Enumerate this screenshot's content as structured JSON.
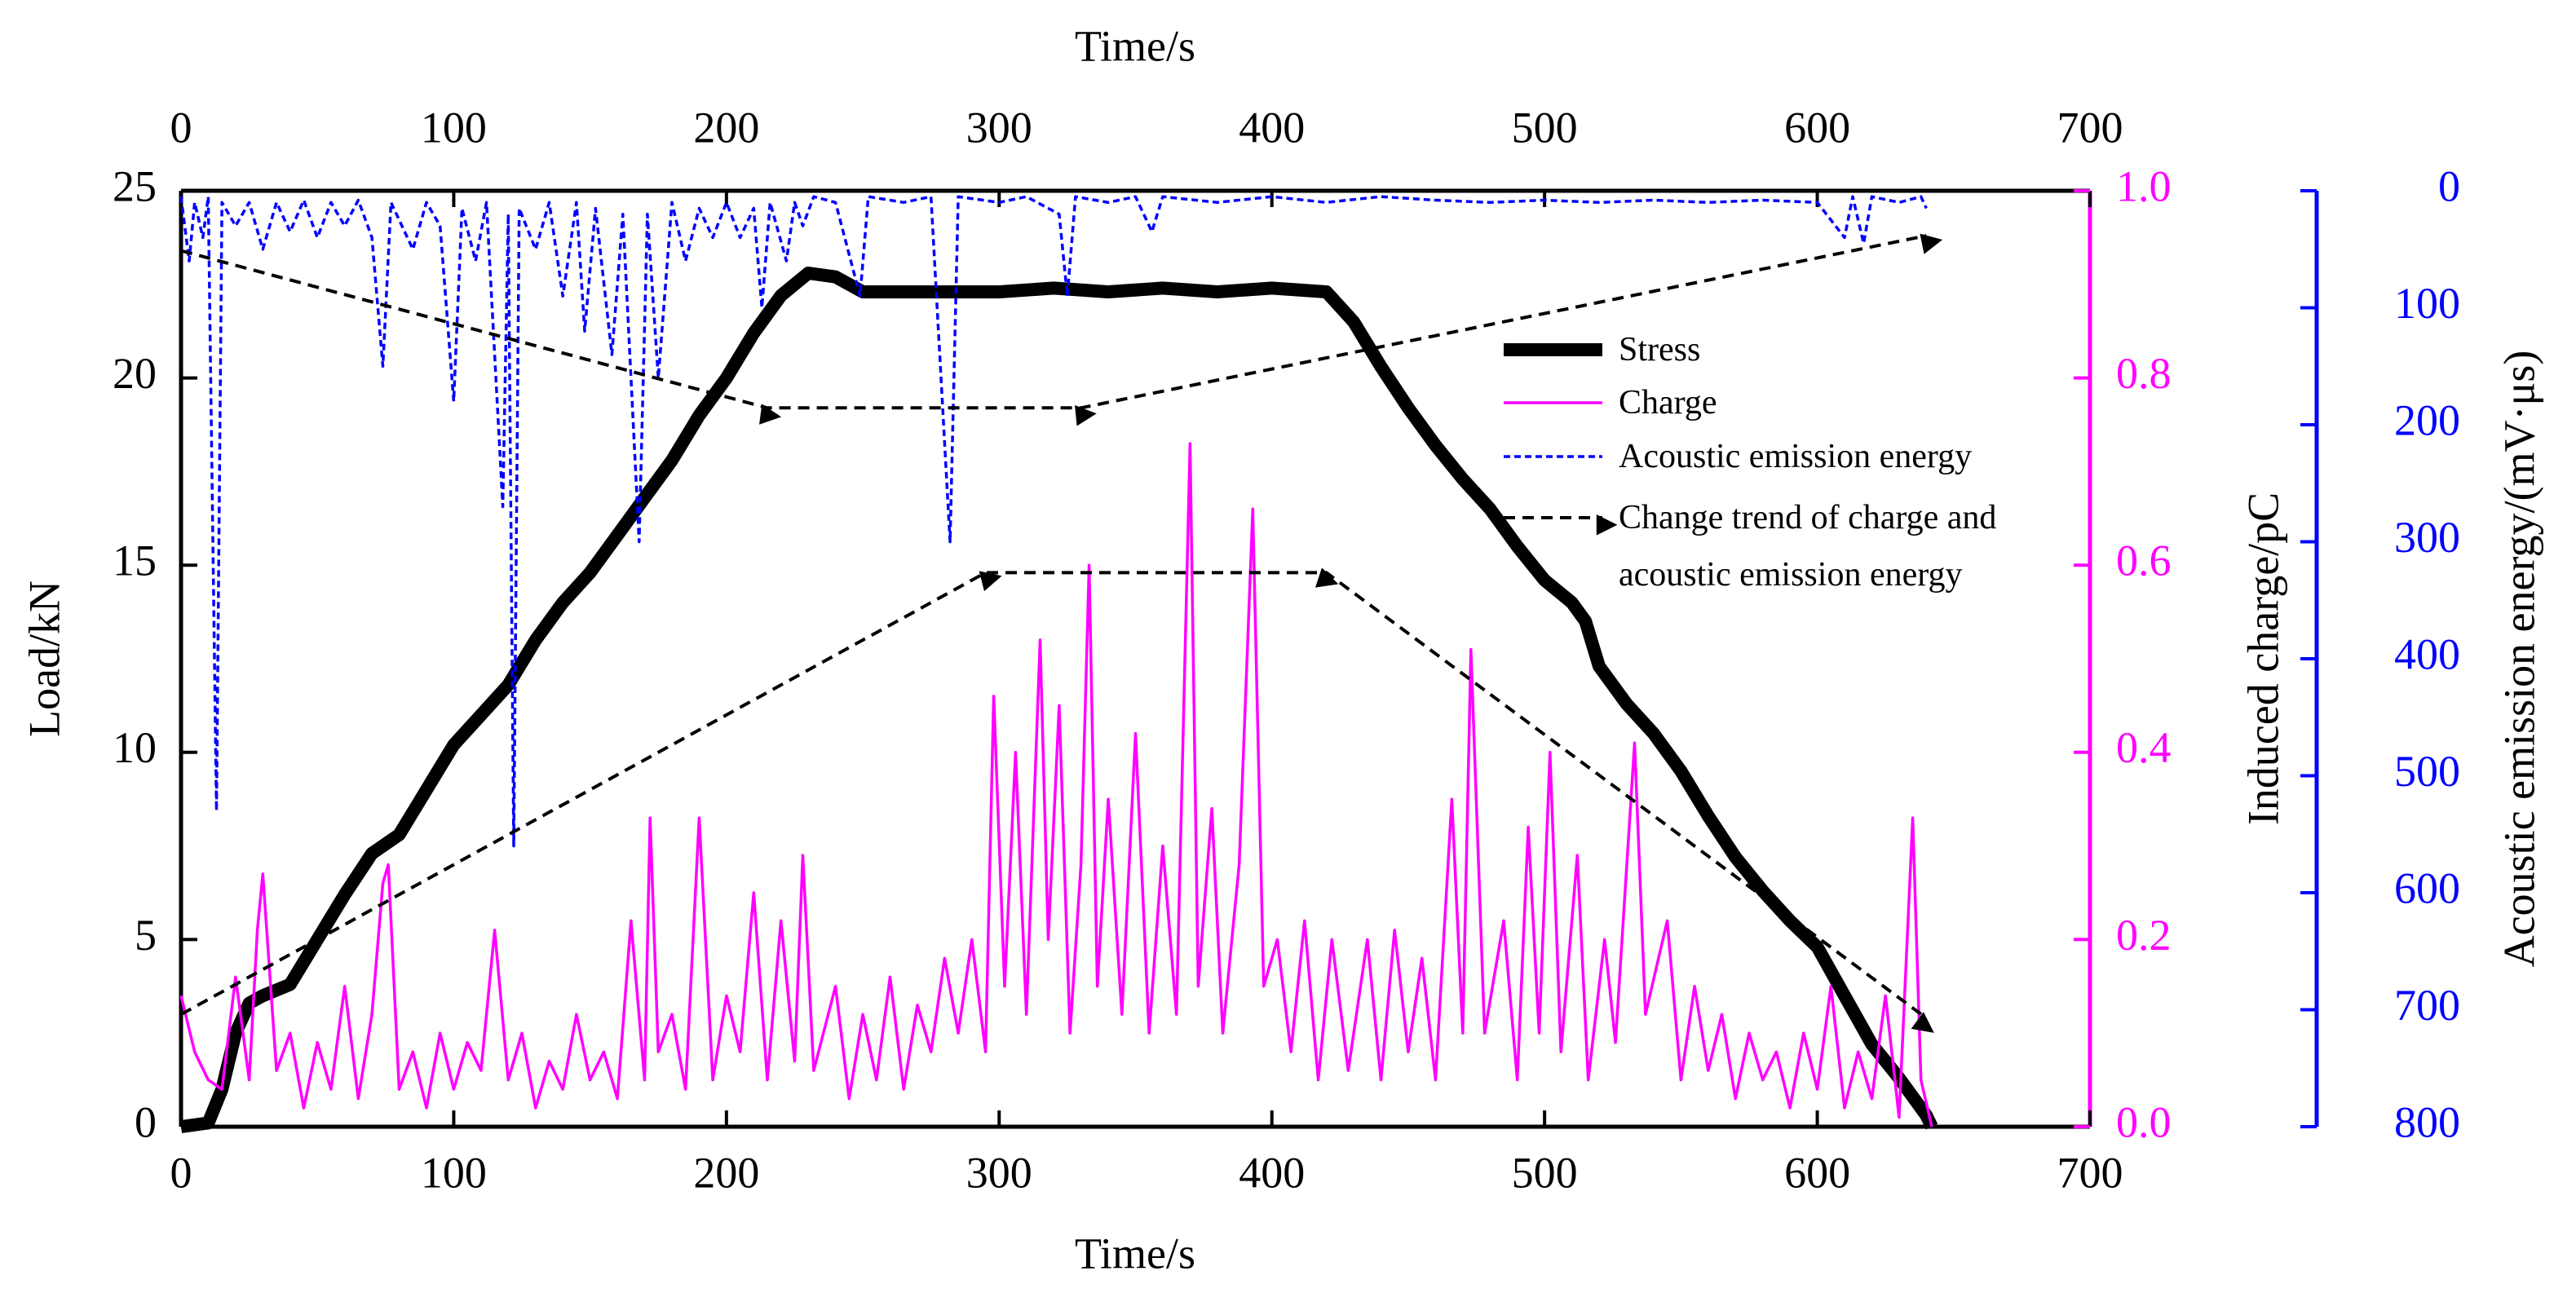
{
  "chart_data": {
    "type": "line",
    "xlabel": "Time/s",
    "x2label": "Time/s",
    "ylabel": "Load/kN",
    "y2label": "Induced charge/pC",
    "y3label": "Acoustic emission energy/(mV·μs)",
    "xlim": [
      0,
      700
    ],
    "xticks": [
      0,
      100,
      200,
      300,
      400,
      500,
      600,
      700
    ],
    "ylim": [
      0,
      25
    ],
    "yticks": [
      0,
      5,
      10,
      15,
      20,
      25
    ],
    "y2lim": [
      0,
      1
    ],
    "y2ticks": [
      {
        "value": 0,
        "label": "0.0"
      },
      0.2,
      0.4,
      0.6,
      0.8,
      {
        "value": 1,
        "label": "1.0"
      }
    ],
    "y3lim": [
      800,
      0
    ],
    "y3ticks": [
      0,
      100,
      200,
      300,
      400,
      500,
      600,
      700,
      800
    ],
    "series": [
      {
        "name": "Stress",
        "color": "#000000",
        "axis": "y",
        "style": "solid",
        "width": 16,
        "x": [
          0,
          10,
          15,
          20,
          25,
          30,
          40,
          50,
          60,
          70,
          80,
          90,
          100,
          110,
          120,
          130,
          140,
          150,
          160,
          170,
          180,
          190,
          200,
          210,
          220,
          230,
          240,
          250,
          260,
          280,
          300,
          320,
          340,
          360,
          380,
          400,
          420,
          430,
          440,
          450,
          460,
          470,
          480,
          490,
          500,
          510,
          515,
          520,
          530,
          540,
          550,
          560,
          570,
          580,
          590,
          600,
          610,
          620,
          630,
          640,
          642
        ],
        "values": [
          0,
          0.1,
          1,
          2.5,
          3.3,
          3.5,
          3.8,
          5,
          6.2,
          7.3,
          7.8,
          9,
          10.2,
          11,
          11.8,
          13,
          14,
          14.8,
          15.8,
          16.8,
          17.8,
          19,
          20,
          21.2,
          22.2,
          22.8,
          22.7,
          22.3,
          22.3,
          22.3,
          22.3,
          22.4,
          22.3,
          22.4,
          22.3,
          22.4,
          22.3,
          21.5,
          20.3,
          19.2,
          18.2,
          17.3,
          16.5,
          15.5,
          14.6,
          14,
          13.5,
          12.3,
          11.3,
          10.5,
          9.5,
          8.3,
          7.2,
          6.3,
          5.5,
          4.8,
          3.5,
          2.2,
          1.3,
          0.3,
          0
        ]
      },
      {
        "name": "Charge",
        "color": "#ff00ff",
        "axis": "y2",
        "style": "solid",
        "width": 3.5,
        "x": [
          0,
          5,
          10,
          15,
          20,
          25,
          28,
          30,
          35,
          40,
          45,
          50,
          55,
          60,
          65,
          70,
          74,
          76,
          80,
          85,
          90,
          95,
          100,
          105,
          110,
          115,
          120,
          125,
          130,
          135,
          140,
          145,
          150,
          155,
          160,
          165,
          170,
          172,
          175,
          180,
          185,
          190,
          195,
          200,
          205,
          210,
          215,
          220,
          225,
          228,
          232,
          240,
          245,
          250,
          255,
          260,
          265,
          270,
          275,
          280,
          285,
          290,
          295,
          298,
          302,
          306,
          310,
          315,
          318,
          322,
          326,
          330,
          333,
          336,
          340,
          345,
          350,
          355,
          360,
          365,
          370,
          373,
          378,
          382,
          388,
          393,
          397,
          402,
          407,
          412,
          417,
          422,
          428,
          435,
          440,
          445,
          450,
          455,
          460,
          466,
          470,
          473,
          478,
          485,
          490,
          494,
          498,
          502,
          506,
          512,
          516,
          522,
          526,
          533,
          537,
          545,
          550,
          555,
          560,
          565,
          570,
          575,
          580,
          585,
          590,
          595,
          600,
          605,
          610,
          615,
          620,
          625,
          630,
          635,
          638,
          642
        ],
        "values": [
          0.14,
          0.08,
          0.05,
          0.04,
          0.16,
          0.05,
          0.21,
          0.27,
          0.06,
          0.1,
          0.02,
          0.09,
          0.04,
          0.15,
          0.03,
          0.12,
          0.26,
          0.28,
          0.04,
          0.08,
          0.02,
          0.1,
          0.04,
          0.09,
          0.06,
          0.21,
          0.05,
          0.1,
          0.02,
          0.07,
          0.04,
          0.12,
          0.05,
          0.08,
          0.03,
          0.22,
          0.05,
          0.33,
          0.08,
          0.12,
          0.04,
          0.33,
          0.05,
          0.14,
          0.08,
          0.25,
          0.05,
          0.22,
          0.07,
          0.29,
          0.06,
          0.15,
          0.03,
          0.12,
          0.05,
          0.16,
          0.04,
          0.13,
          0.08,
          0.18,
          0.1,
          0.2,
          0.08,
          0.46,
          0.15,
          0.4,
          0.12,
          0.52,
          0.2,
          0.45,
          0.1,
          0.28,
          0.6,
          0.15,
          0.35,
          0.12,
          0.42,
          0.1,
          0.3,
          0.12,
          0.73,
          0.15,
          0.34,
          0.1,
          0.28,
          0.66,
          0.15,
          0.2,
          0.08,
          0.22,
          0.05,
          0.2,
          0.06,
          0.2,
          0.05,
          0.21,
          0.08,
          0.18,
          0.05,
          0.35,
          0.1,
          0.51,
          0.1,
          0.22,
          0.05,
          0.32,
          0.1,
          0.4,
          0.08,
          0.29,
          0.05,
          0.2,
          0.09,
          0.41,
          0.12,
          0.22,
          0.05,
          0.15,
          0.06,
          0.12,
          0.03,
          0.1,
          0.05,
          0.08,
          0.02,
          0.1,
          0.04,
          0.15,
          0.02,
          0.08,
          0.03,
          0.14,
          0.01,
          0.33,
          0.05,
          0
        ]
      },
      {
        "name": "Acoustic emission energy",
        "color": "#0000ff",
        "axis": "y3",
        "style": "dotted",
        "width": 3.5,
        "x": [
          0,
          3,
          5,
          8,
          10,
          13,
          15,
          20,
          25,
          30,
          35,
          40,
          45,
          50,
          55,
          60,
          65,
          70,
          74,
          77,
          85,
          90,
          95,
          100,
          103,
          108,
          112,
          118,
          120,
          122,
          124,
          130,
          135,
          140,
          145,
          148,
          152,
          158,
          162,
          168,
          171,
          175,
          180,
          185,
          190,
          195,
          200,
          205,
          210,
          213,
          216,
          222,
          225,
          228,
          232,
          240,
          249,
          252,
          265,
          275,
          282,
          285,
          300,
          310,
          322,
          325,
          328,
          340,
          350,
          356,
          360,
          380,
          400,
          420,
          440,
          460,
          480,
          500,
          520,
          540,
          560,
          580,
          600,
          610,
          613,
          617,
          620,
          630,
          638,
          640
        ],
        "values": [
          5,
          60,
          10,
          40,
          5,
          530,
          10,
          30,
          10,
          50,
          10,
          35,
          8,
          40,
          10,
          30,
          8,
          40,
          150,
          10,
          50,
          10,
          30,
          180,
          15,
          60,
          10,
          270,
          20,
          560,
          15,
          50,
          10,
          90,
          10,
          120,
          15,
          140,
          20,
          300,
          20,
          160,
          10,
          60,
          15,
          40,
          10,
          40,
          15,
          100,
          10,
          60,
          10,
          30,
          5,
          10,
          90,
          5,
          10,
          5,
          300,
          5,
          10,
          5,
          20,
          90,
          5,
          10,
          5,
          35,
          5,
          10,
          5,
          10,
          5,
          8,
          10,
          8,
          10,
          8,
          10,
          8,
          10,
          40,
          5,
          45,
          5,
          10,
          5,
          15
        ]
      },
      {
        "name": "Change trend of charge and acoustic emission energy",
        "color": "#000000",
        "axis": "y",
        "style": "dashed",
        "width": 4,
        "arrows": true,
        "x": [
          0,
          215,
          330,
          640,
          null,
          0,
          295,
          420,
          640
        ],
        "values": [
          23.4,
          19.2,
          19.2,
          23.8,
          null,
          3.0,
          14.8,
          14.8,
          2.9
        ]
      }
    ]
  }
}
